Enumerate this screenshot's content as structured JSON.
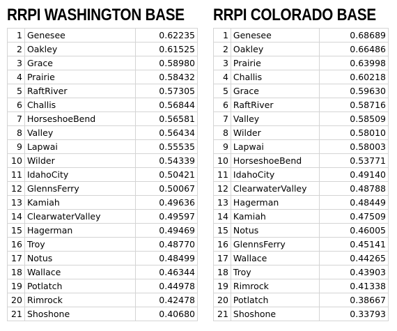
{
  "tables": [
    {
      "title": "RRPI WASHINGTON BASE",
      "rows": [
        [
          1,
          "Genesee",
          "0.62235"
        ],
        [
          2,
          "Oakley",
          "0.61525"
        ],
        [
          3,
          "Grace",
          "0.58980"
        ],
        [
          4,
          "Prairie",
          "0.58432"
        ],
        [
          5,
          "RaftRiver",
          "0.57305"
        ],
        [
          6,
          "Challis",
          "0.56844"
        ],
        [
          7,
          "HorseshoeBend",
          "0.56581"
        ],
        [
          8,
          "Valley",
          "0.56434"
        ],
        [
          9,
          "Lapwai",
          "0.55535"
        ],
        [
          10,
          "Wilder",
          "0.54339"
        ],
        [
          11,
          "IdahoCity",
          "0.50421"
        ],
        [
          12,
          "GlennsFerry",
          "0.50067"
        ],
        [
          13,
          "Kamiah",
          "0.49636"
        ],
        [
          14,
          "ClearwaterValley",
          "0.49597"
        ],
        [
          15,
          "Hagerman",
          "0.49469"
        ],
        [
          16,
          "Troy",
          "0.48770"
        ],
        [
          17,
          "Notus",
          "0.48499"
        ],
        [
          18,
          "Wallace",
          "0.46344"
        ],
        [
          19,
          "Potlatch",
          "0.44978"
        ],
        [
          20,
          "Rimrock",
          "0.42478"
        ],
        [
          21,
          "Shoshone",
          "0.40680"
        ]
      ]
    },
    {
      "title": "RRPI COLORADO BASE",
      "rows": [
        [
          1,
          "Genesee",
          "0.68689"
        ],
        [
          2,
          "Oakley",
          "0.66486"
        ],
        [
          3,
          "Prairie",
          "0.63998"
        ],
        [
          4,
          "Challis",
          "0.60218"
        ],
        [
          5,
          "Grace",
          "0.59630"
        ],
        [
          6,
          "RaftRiver",
          "0.58716"
        ],
        [
          7,
          "Valley",
          "0.58509"
        ],
        [
          8,
          "Wilder",
          "0.58010"
        ],
        [
          9,
          "Lapwai",
          "0.58003"
        ],
        [
          10,
          "HorseshoeBend",
          "0.53771"
        ],
        [
          11,
          "IdahoCity",
          "0.49140"
        ],
        [
          12,
          "ClearwaterValley",
          "0.48788"
        ],
        [
          13,
          "Hagerman",
          "0.48449"
        ],
        [
          14,
          "Kamiah",
          "0.47509"
        ],
        [
          15,
          "Notus",
          "0.46005"
        ],
        [
          16,
          "GlennsFerry",
          "0.45141"
        ],
        [
          17,
          "Wallace",
          "0.44265"
        ],
        [
          18,
          "Troy",
          "0.43903"
        ],
        [
          19,
          "Rimrock",
          "0.41338"
        ],
        [
          20,
          "Potlatch",
          "0.38667"
        ],
        [
          21,
          "Shoshone",
          "0.33793"
        ]
      ]
    }
  ]
}
